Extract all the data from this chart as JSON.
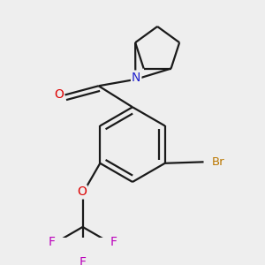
{
  "background_color": "#eeeeee",
  "bond_color": "#1a1a1a",
  "atom_colors": {
    "O": "#dd0000",
    "N": "#2222cc",
    "Br": "#bb7700",
    "F": "#bb00bb"
  },
  "figsize": [
    3.0,
    3.0
  ],
  "dpi": 100,
  "bond_lw": 1.6
}
